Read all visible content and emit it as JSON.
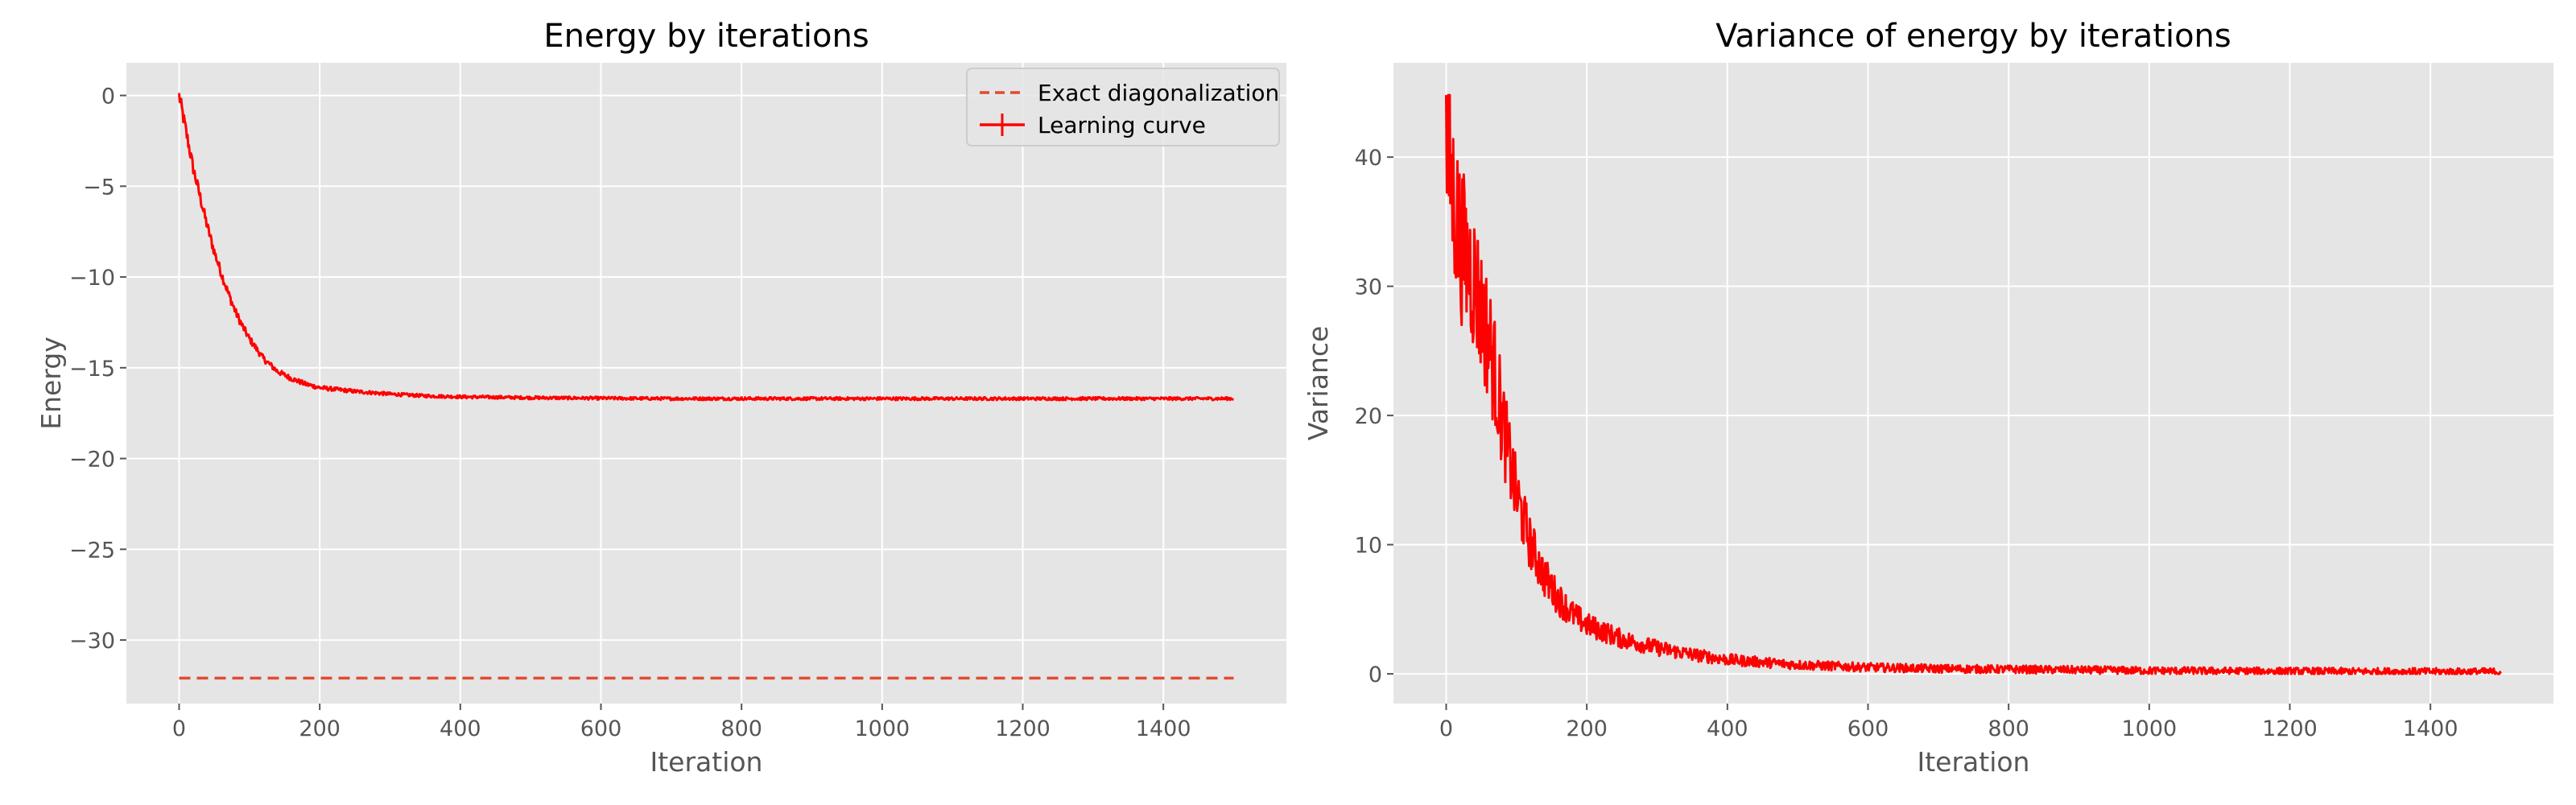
{
  "chart_data": [
    {
      "type": "line",
      "title": "Energy by iterations",
      "xlabel": "Iteration",
      "ylabel": "Energy",
      "xlim": [
        -75,
        1575
      ],
      "ylim": [
        -33.5,
        1.8
      ],
      "xticks": [
        0,
        200,
        400,
        600,
        800,
        1000,
        1200,
        1400
      ],
      "yticks": [
        0,
        -5,
        -10,
        -15,
        -20,
        -25,
        -30
      ],
      "xtick_labels": [
        "0",
        "200",
        "400",
        "600",
        "800",
        "1000",
        "1200",
        "1400"
      ],
      "ytick_labels": [
        "0",
        "−5",
        "−10",
        "−15",
        "−20",
        "−25",
        "−30"
      ],
      "grid": true,
      "legend": "top-right",
      "series": [
        {
          "name": "Exact diagonalization",
          "style": "dashed",
          "color": "#e24a33",
          "x": [
            0,
            1500
          ],
          "y": [
            -32.1,
            -32.1
          ]
        },
        {
          "name": "Learning curve",
          "style": "solid-errorbar",
          "color": "#ff0000",
          "x": [
            0,
            10,
            20,
            30,
            40,
            50,
            60,
            70,
            80,
            90,
            100,
            120,
            140,
            160,
            180,
            200,
            250,
            300,
            350,
            400,
            500,
            600,
            700,
            800,
            900,
            1000,
            1100,
            1200,
            1300,
            1400,
            1500
          ],
          "y": [
            0.0,
            -2.0,
            -4.0,
            -5.6,
            -7.2,
            -8.6,
            -9.8,
            -10.9,
            -11.9,
            -12.7,
            -13.4,
            -14.5,
            -15.2,
            -15.6,
            -15.9,
            -16.1,
            -16.3,
            -16.45,
            -16.55,
            -16.6,
            -16.65,
            -16.68,
            -16.7,
            -16.7,
            -16.7,
            -16.7,
            -16.7,
            -16.7,
            -16.7,
            -16.7,
            -16.7
          ]
        }
      ]
    },
    {
      "type": "line",
      "title": "Variance of energy by iterations",
      "xlabel": "Iteration",
      "ylabel": "Variance",
      "xlim": [
        -75,
        1575
      ],
      "ylim": [
        -2.3,
        47.3
      ],
      "xticks": [
        0,
        200,
        400,
        600,
        800,
        1000,
        1200,
        1400
      ],
      "yticks": [
        0,
        10,
        20,
        30,
        40
      ],
      "xtick_labels": [
        "0",
        "200",
        "400",
        "600",
        "800",
        "1000",
        "1200",
        "1400"
      ],
      "ytick_labels": [
        "0",
        "10",
        "20",
        "30",
        "40"
      ],
      "grid": true,
      "series": [
        {
          "style": "solid-noisy",
          "color": "#ff0000",
          "x": [
            0,
            10,
            20,
            30,
            40,
            50,
            60,
            70,
            80,
            90,
            100,
            120,
            140,
            160,
            180,
            200,
            250,
            300,
            350,
            400,
            500,
            600,
            700,
            800,
            900,
            1000,
            1100,
            1200,
            1300,
            1400,
            1500
          ],
          "y": [
            41,
            37,
            33.5,
            32,
            30.5,
            28,
            26,
            23,
            19.5,
            16.5,
            13.8,
            10,
            7.5,
            5.8,
            4.6,
            3.8,
            2.7,
            2.0,
            1.5,
            1.1,
            0.7,
            0.5,
            0.4,
            0.35,
            0.3,
            0.25,
            0.22,
            0.2,
            0.18,
            0.17,
            0.16
          ]
        }
      ]
    }
  ],
  "colors": {
    "plot_background": "#e5e5e5",
    "grid": "#ffffff",
    "tick_text": "#555555",
    "exact": "#e24a33",
    "learning": "#ff0000"
  }
}
